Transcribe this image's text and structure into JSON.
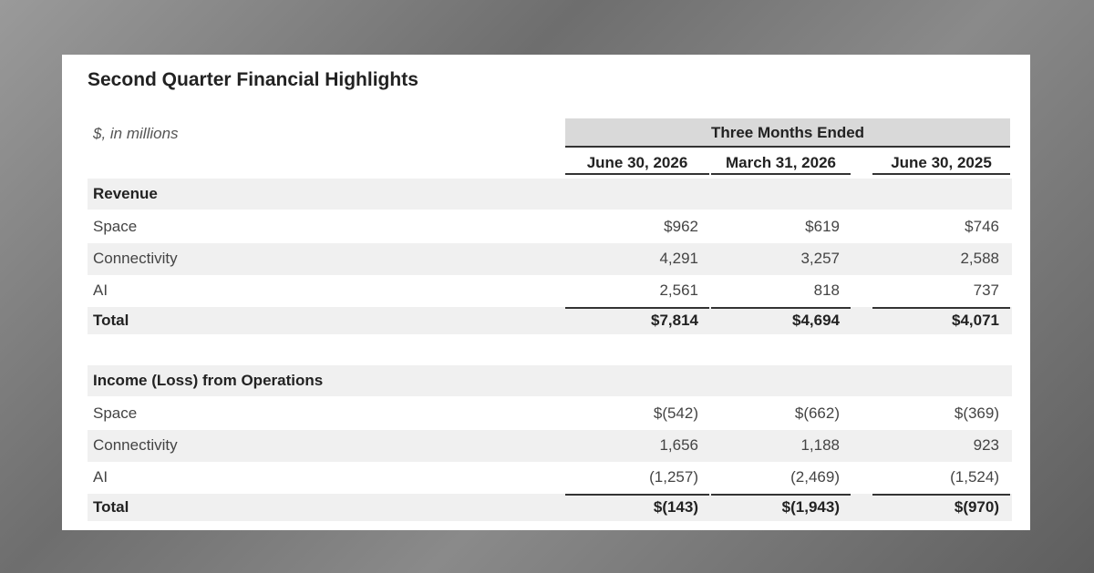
{
  "title": "Second Quarter Financial Highlights",
  "units_note": "$, in millions",
  "period_header": "Three Months Ended",
  "columns": [
    "June 30, 2026",
    "March 31, 2026",
    "June 30, 2025"
  ],
  "sections": [
    {
      "heading": "Revenue",
      "rows": [
        {
          "label": "Space",
          "values": [
            "$962",
            "$619",
            "$746"
          ]
        },
        {
          "label": "Connectivity",
          "values": [
            "4,291",
            "3,257",
            "2,588"
          ]
        },
        {
          "label": "AI",
          "values": [
            "2,561",
            "818",
            "737"
          ]
        }
      ],
      "total": {
        "label": "Total",
        "values": [
          "$7,814",
          "$4,694",
          "$4,071"
        ]
      }
    },
    {
      "heading": "Income (Loss) from Operations",
      "rows": [
        {
          "label": "Space",
          "values": [
            "$(542)",
            "$(662)",
            "$(369)"
          ]
        },
        {
          "label": "Connectivity",
          "values": [
            "1,656",
            "1,188",
            "923"
          ]
        },
        {
          "label": "AI",
          "values": [
            "(1,257)",
            "(2,469)",
            "(1,524)"
          ]
        }
      ],
      "total": {
        "label": "Total",
        "values": [
          "$(143)",
          "$(1,943)",
          "$(970)"
        ]
      }
    }
  ]
}
